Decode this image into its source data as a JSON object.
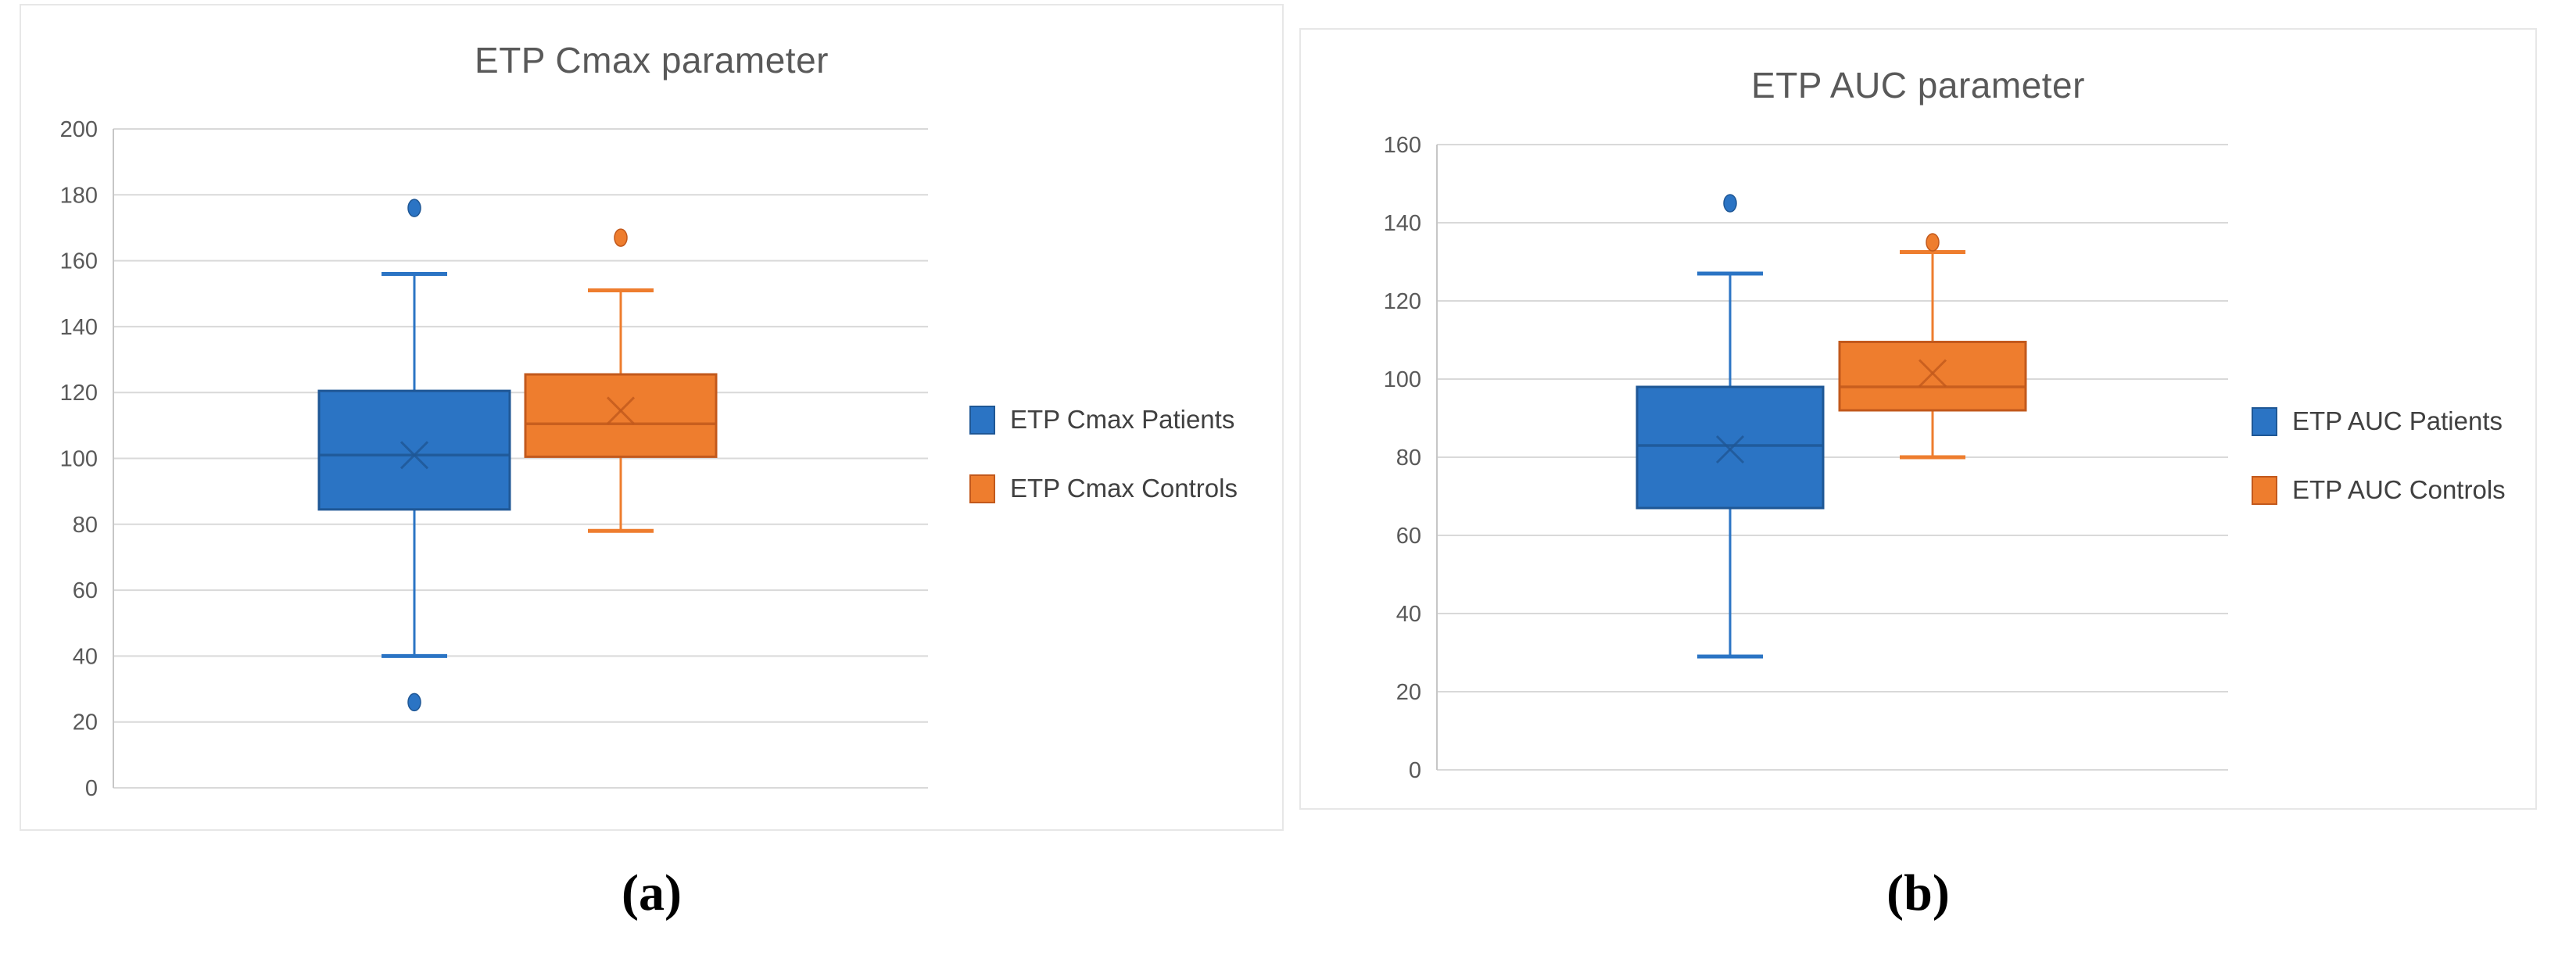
{
  "styles": {
    "gridline_color": "#d9d9d9",
    "axis_line_color": "#c6c6c6",
    "tick_text_color": "#595959",
    "title_text_color": "#595959",
    "legend_text_color": "#404040",
    "panel_border_color": "#e7e7e7",
    "patients_blue": "#2b74c4",
    "controls_orange": "#ee7d2e"
  },
  "chart_data": [
    {
      "id": "a",
      "type": "boxplot",
      "title": "ETP Cmax parameter",
      "caption": "(a)",
      "xlabel": "",
      "ylabel": "",
      "ylim": [
        0,
        200
      ],
      "yticks": [
        0,
        20,
        40,
        60,
        80,
        100,
        120,
        140,
        160,
        180,
        200
      ],
      "grid": true,
      "legend_position": "right",
      "series": [
        {
          "name": "ETP Cmax Patients",
          "color": "#2b74c4",
          "border_color": "#1f5795",
          "whisker_low": 40,
          "q1": 84.5,
          "median": 101,
          "mean": 101,
          "q3": 120.5,
          "whisker_high": 156,
          "outliers": [
            176,
            26
          ]
        },
        {
          "name": "ETP Cmax Controls",
          "color": "#ee7d2e",
          "border_color": "#c2591c",
          "whisker_low": 78,
          "q1": 100.5,
          "median": 110.5,
          "mean": 114.5,
          "q3": 125.5,
          "whisker_high": 151,
          "outliers": [
            167
          ]
        }
      ]
    },
    {
      "id": "b",
      "type": "boxplot",
      "title": "ETP AUC parameter",
      "caption": "(b)",
      "xlabel": "",
      "ylabel": "",
      "ylim": [
        0,
        160
      ],
      "yticks": [
        0,
        20,
        40,
        60,
        80,
        100,
        120,
        140,
        160
      ],
      "grid": true,
      "legend_position": "right",
      "series": [
        {
          "name": "ETP AUC Patients",
          "color": "#2b74c4",
          "border_color": "#1f5795",
          "whisker_low": 29,
          "q1": 67,
          "median": 83,
          "mean": 82,
          "q3": 98,
          "whisker_high": 127,
          "outliers": [
            145
          ]
        },
        {
          "name": "ETP AUC Controls",
          "color": "#ee7d2e",
          "border_color": "#c2591c",
          "whisker_low": 80,
          "q1": 92,
          "median": 98,
          "mean": 101.5,
          "q3": 109.5,
          "whisker_high": 132.5,
          "outliers": [
            135
          ]
        }
      ]
    }
  ]
}
